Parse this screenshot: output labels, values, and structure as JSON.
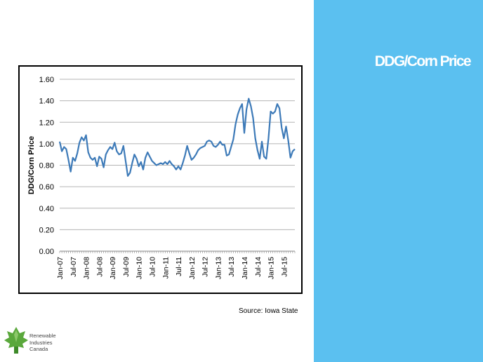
{
  "slide": {
    "title": "DDG/Corn Price",
    "source": "Source: Iowa State"
  },
  "logo": {
    "line1": "Renewable",
    "line2": "Industries",
    "line3": "Canada",
    "icon": "maple-leaf-icon"
  },
  "colors": {
    "panel": "#5bc0f0",
    "line": "#3d7ab8",
    "grid": "#b4b4b4",
    "logo_green": "#5aa83c"
  },
  "chart_data": {
    "type": "line",
    "title": "",
    "xlabel": "",
    "ylabel": "DDG/Corn Price",
    "ylim": [
      0,
      1.6
    ],
    "yticks": [
      "0.00",
      "0.20",
      "0.40",
      "0.60",
      "0.80",
      "1.00",
      "1.20",
      "1.40",
      "1.60"
    ],
    "xticks": [
      "Jan-07",
      "Jul-07",
      "Jan-08",
      "Jul-08",
      "Jan-09",
      "Jul-09",
      "Jan-10",
      "Jul-10",
      "Jan-11",
      "Jul-11",
      "Jan-12",
      "Jul-12",
      "Jan-13",
      "Jul-13",
      "Jan-14",
      "Jul-14",
      "Jan-15",
      "Jul-15"
    ],
    "grid": true,
    "legend": "none",
    "series": [
      {
        "start": "Jan-07",
        "frequency": "monthly",
        "values": [
          1.02,
          0.93,
          0.97,
          0.95,
          0.85,
          0.74,
          0.87,
          0.84,
          0.91,
          1.01,
          1.06,
          1.03,
          1.08,
          0.92,
          0.87,
          0.85,
          0.87,
          0.79,
          0.88,
          0.86,
          0.78,
          0.9,
          0.94,
          0.97,
          0.95,
          1.01,
          0.93,
          0.9,
          0.91,
          0.98,
          0.84,
          0.7,
          0.73,
          0.82,
          0.9,
          0.86,
          0.79,
          0.83,
          0.76,
          0.87,
          0.92,
          0.88,
          0.84,
          0.82,
          0.8,
          0.81,
          0.82,
          0.81,
          0.83,
          0.81,
          0.84,
          0.81,
          0.79,
          0.76,
          0.79,
          0.76,
          0.82,
          0.89,
          0.98,
          0.91,
          0.85,
          0.87,
          0.9,
          0.94,
          0.96,
          0.97,
          0.98,
          1.02,
          1.03,
          1.02,
          0.98,
          0.97,
          0.99,
          1.02,
          0.99,
          0.99,
          0.89,
          0.9,
          0.97,
          1.04,
          1.18,
          1.27,
          1.33,
          1.37,
          1.1,
          1.32,
          1.42,
          1.35,
          1.24,
          1.05,
          0.94,
          0.86,
          1.02,
          0.88,
          0.86,
          1.05,
          1.3,
          1.28,
          1.3,
          1.37,
          1.33,
          1.15,
          1.05,
          1.16,
          1.03,
          0.87,
          0.93,
          0.95
        ]
      }
    ]
  }
}
